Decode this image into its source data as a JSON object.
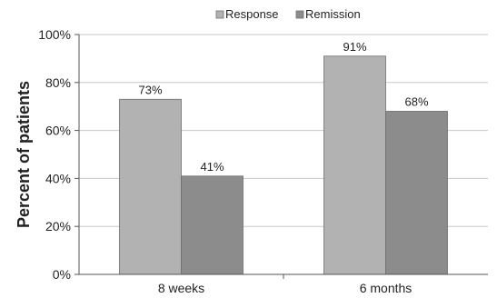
{
  "chart_data": {
    "type": "bar",
    "categories": [
      "8 weeks",
      "6 months"
    ],
    "series": [
      {
        "name": "Response",
        "values": [
          73,
          91
        ],
        "labels": [
          "73%",
          "91%"
        ],
        "color": "#b2b2b2"
      },
      {
        "name": "Remission",
        "values": [
          41,
          68
        ],
        "labels": [
          "41%",
          "68%"
        ],
        "color": "#8c8c8c"
      }
    ],
    "ylabel": "Percent of patients",
    "xlabel": "",
    "ylim": [
      0,
      100
    ],
    "yticks": [
      0,
      20,
      40,
      60,
      80,
      100
    ],
    "ytick_labels": [
      "0%",
      "20%",
      "40%",
      "60%",
      "80%",
      "100%"
    ],
    "grid": true,
    "legend_position": "top"
  }
}
